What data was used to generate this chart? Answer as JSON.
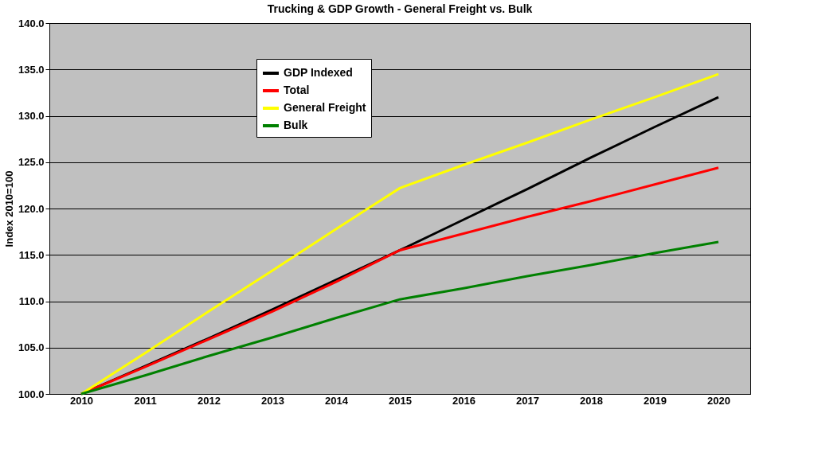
{
  "chart_data": {
    "type": "line",
    "title": "Trucking & GDP Growth - General Freight vs. Bulk",
    "ylabel": "Index 2010=100",
    "categories": [
      "2010",
      "2011",
      "2012",
      "2013",
      "2014",
      "2015",
      "2016",
      "2017",
      "2018",
      "2019",
      "2020"
    ],
    "series": [
      {
        "name": "GDP Indexed",
        "color": "#000000",
        "values": [
          100,
          103.0,
          106.0,
          109.1,
          112.3,
          115.5,
          118.8,
          122.1,
          125.5,
          128.8,
          132.0
        ]
      },
      {
        "name": "Total",
        "color": "#ff0000",
        "values": [
          100,
          102.9,
          105.9,
          108.9,
          112.1,
          115.5,
          117.3,
          119.1,
          120.8,
          122.6,
          124.4
        ]
      },
      {
        "name": "General Freight",
        "color": "#ffff00",
        "values": [
          100,
          104.4,
          108.9,
          113.3,
          117.8,
          122.2,
          124.7,
          127.1,
          129.6,
          132.0,
          134.5
        ]
      },
      {
        "name": "Bulk",
        "color": "#008000",
        "values": [
          100,
          102.0,
          104.1,
          106.1,
          108.2,
          110.2,
          111.4,
          112.7,
          113.9,
          115.2,
          116.4
        ]
      }
    ],
    "ylim": [
      100,
      140
    ],
    "yticks": [
      {
        "value": 100,
        "label": "100.0"
      },
      {
        "value": 105,
        "label": "105.0"
      },
      {
        "value": 110,
        "label": "110.0"
      },
      {
        "value": 115,
        "label": "115.0"
      },
      {
        "value": 120,
        "label": "120.0"
      },
      {
        "value": 125,
        "label": "125.0"
      },
      {
        "value": 130,
        "label": "130.0"
      },
      {
        "value": 135,
        "label": "135.0"
      },
      {
        "value": 140,
        "label": "140.0"
      }
    ],
    "grid": "y",
    "legend": "top left",
    "marker": "none",
    "line_style": "solid"
  }
}
